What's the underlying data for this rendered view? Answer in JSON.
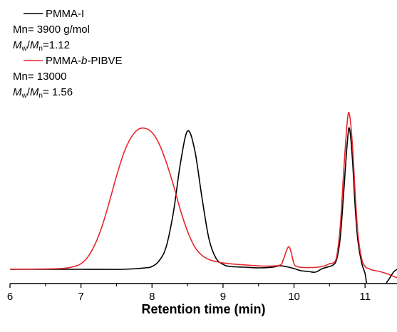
{
  "chart_data": {
    "type": "line",
    "title": "",
    "xlabel": "Retention time (min)",
    "ylabel": "",
    "xlim": [
      6,
      11.45
    ],
    "ylim": [
      -0.1,
      1.1
    ],
    "x_ticks": [
      "6",
      "7",
      "8",
      "9",
      "10",
      "11"
    ],
    "grid": false,
    "legend_position": "top-left",
    "colors": {
      "axis": "#000000"
    },
    "series": [
      {
        "name": "PMMA-I",
        "color": "#000000",
        "annotation_lines": [
          [
            {
              "t": "Mn= 3900 g/mol"
            }
          ],
          [
            {
              "t": "M",
              "s": "i"
            },
            {
              "t": "w",
              "s": "sub"
            },
            {
              "t": "/"
            },
            {
              "t": "M",
              "s": "i"
            },
            {
              "t": "n",
              "s": "sub"
            },
            {
              "t": "=1.12"
            }
          ]
        ],
        "x": [
          6.0,
          7.0,
          7.6,
          7.9,
          8.0,
          8.1,
          8.2,
          8.3,
          8.4,
          8.5,
          8.6,
          8.7,
          8.8,
          8.9,
          9.0,
          9.1,
          9.3,
          9.5,
          9.7,
          9.8,
          9.9,
          10.0,
          10.1,
          10.2,
          10.3,
          10.4,
          10.5,
          10.55,
          10.6,
          10.65,
          10.7,
          10.75,
          10.78,
          10.82,
          10.86,
          10.9,
          10.95,
          11.0,
          11.02
        ],
        "y": [
          0.0,
          0.0,
          0.0,
          0.01,
          0.02,
          0.06,
          0.16,
          0.4,
          0.75,
          0.98,
          0.85,
          0.52,
          0.22,
          0.08,
          0.035,
          0.02,
          0.015,
          0.01,
          0.015,
          0.025,
          0.018,
          0.005,
          -0.01,
          -0.015,
          -0.02,
          0.005,
          0.02,
          0.03,
          0.07,
          0.22,
          0.55,
          0.9,
          1.0,
          0.8,
          0.45,
          0.2,
          0.05,
          -0.03,
          -0.1
        ]
      },
      {
        "name": "PMMA-b-PIBVE",
        "name_parts": [
          {
            "t": "PMMA-"
          },
          {
            "t": "b",
            "s": "i"
          },
          {
            "t": "-PIBVE"
          }
        ],
        "color": "#e8262b",
        "annotation_lines": [
          [
            {
              "t": "Mn= 13000"
            }
          ],
          [
            {
              "t": "M",
              "s": "i"
            },
            {
              "t": "w",
              "s": "sub"
            },
            {
              "t": "/"
            },
            {
              "t": "M",
              "s": "i"
            },
            {
              "t": "n",
              "s": "sub"
            },
            {
              "t": "= 1.56"
            }
          ]
        ],
        "x": [
          6.0,
          6.7,
          6.9,
          7.0,
          7.1,
          7.2,
          7.3,
          7.4,
          7.5,
          7.6,
          7.7,
          7.8,
          7.9,
          8.0,
          8.1,
          8.2,
          8.3,
          8.4,
          8.5,
          8.6,
          8.7,
          8.8,
          8.9,
          9.0,
          9.2,
          9.4,
          9.6,
          9.8,
          9.85,
          9.9,
          9.93,
          9.96,
          10.0,
          10.05,
          10.2,
          10.4,
          10.5,
          10.55,
          10.6,
          10.65,
          10.7,
          10.75,
          10.78,
          10.82,
          10.86,
          10.9,
          10.95,
          11.0,
          11.05,
          11.1,
          11.2,
          11.3,
          11.4,
          11.45
        ],
        "y": [
          0.0,
          0.005,
          0.02,
          0.04,
          0.09,
          0.18,
          0.31,
          0.48,
          0.66,
          0.82,
          0.93,
          0.99,
          1.0,
          0.97,
          0.89,
          0.76,
          0.6,
          0.42,
          0.27,
          0.16,
          0.1,
          0.07,
          0.055,
          0.045,
          0.035,
          0.028,
          0.022,
          0.03,
          0.07,
          0.14,
          0.16,
          0.12,
          0.04,
          0.018,
          0.012,
          0.02,
          0.04,
          0.045,
          0.09,
          0.3,
          0.7,
          1.05,
          1.1,
          0.9,
          0.55,
          0.25,
          0.08,
          0.02,
          0.005,
          -0.005,
          -0.015,
          -0.03,
          -0.05,
          -0.06
        ]
      },
      {
        "name": "",
        "color": "#000000",
        "x": [
          11.3,
          11.35,
          11.4,
          11.45
        ],
        "y": [
          -0.1,
          -0.06,
          -0.02,
          0.0
        ]
      }
    ]
  }
}
